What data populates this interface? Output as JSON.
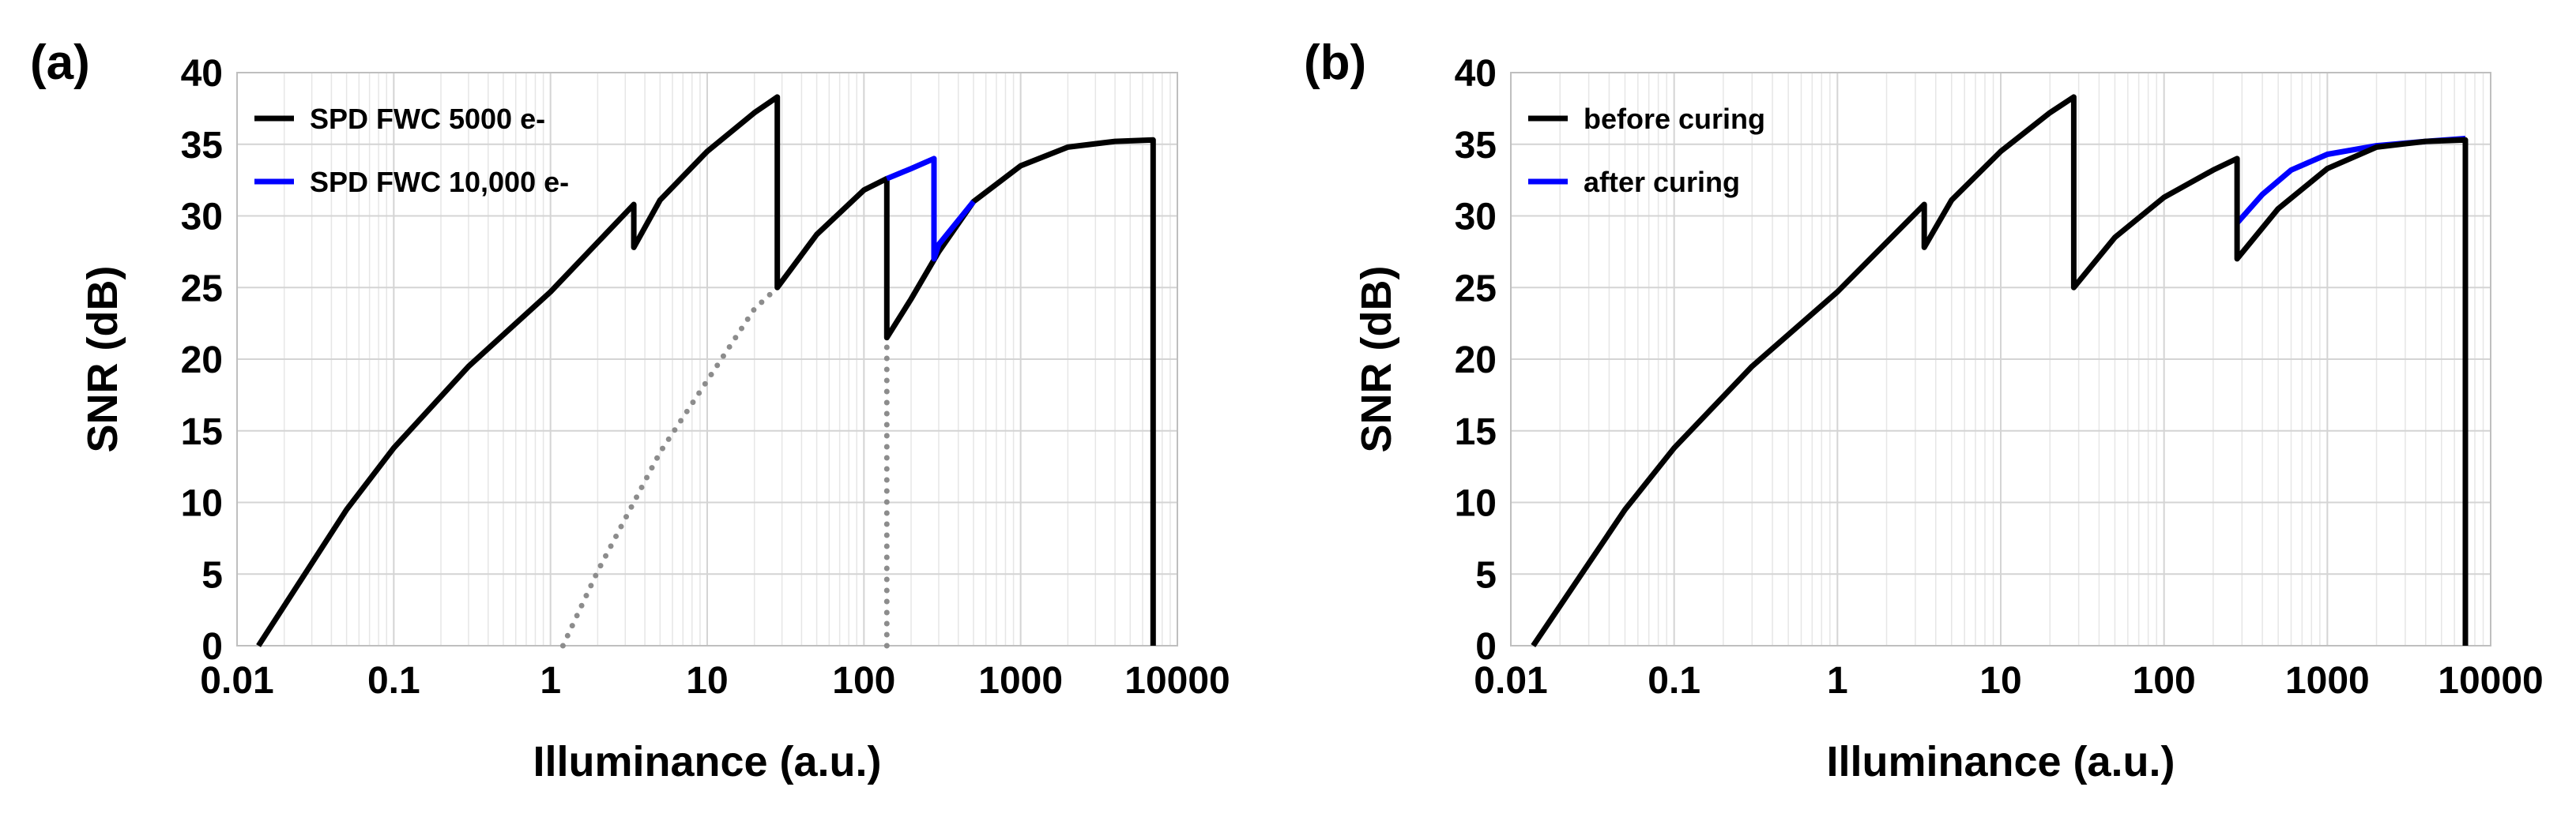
{
  "chart_data": [
    {
      "type": "line",
      "panel_label": "(a)",
      "xlabel": "Illuminance (a.u.)",
      "ylabel": "SNR (dB)",
      "xscale": "log",
      "xlim": [
        0.01,
        10000
      ],
      "ylim": [
        0,
        40
      ],
      "xticks": [
        "0.01",
        "0.1",
        "1",
        "10",
        "100",
        "1000",
        "10000"
      ],
      "yticks": [
        "0",
        "5",
        "10",
        "15",
        "20",
        "25",
        "30",
        "35",
        "40"
      ],
      "grid": true,
      "legend_position": "top-left",
      "series": [
        {
          "name": "SPD FWC 5000 e-",
          "color": "#000000",
          "style": "solid",
          "x": [
            0.0137,
            0.05,
            0.1,
            0.3,
            1,
            3.4,
            3.4,
            5,
            10,
            20,
            28,
            28,
            50,
            100,
            140,
            140,
            200,
            300,
            500,
            1000,
            2000,
            4000,
            7000,
            7000
          ],
          "y": [
            0,
            9.5,
            13.8,
            19.5,
            24.7,
            30.8,
            27.8,
            31.1,
            34.5,
            37.2,
            38.3,
            25.0,
            28.7,
            31.8,
            32.6,
            21.5,
            24.2,
            27.5,
            31.0,
            33.5,
            34.8,
            35.2,
            35.3,
            0
          ]
        },
        {
          "name": "SPD FWC 10,000 e-",
          "color": "#0000ff",
          "style": "solid",
          "x": [
            140,
            200,
            280,
            280,
            300,
            500
          ],
          "y": [
            32.6,
            33.3,
            34.0,
            27.0,
            28.0,
            31.0
          ]
        },
        {
          "name": "",
          "color": "#8c8c8c",
          "style": "dotted",
          "x": [
            1.2,
            2,
            5,
            10,
            20,
            28,
            50,
            100,
            140
          ],
          "y": [
            0,
            5.2,
            13.5,
            18.5,
            23.5,
            25.0,
            28.7,
            31.8,
            32.6
          ]
        },
        {
          "name": "",
          "color": "#8c8c8c",
          "style": "dotted",
          "x": [
            140,
            140
          ],
          "y": [
            0,
            21.5
          ]
        }
      ]
    },
    {
      "type": "line",
      "panel_label": "(b)",
      "xlabel": "Illuminance (a.u.)",
      "ylabel": "SNR (dB)",
      "xscale": "log",
      "xlim": [
        0.01,
        10000
      ],
      "ylim": [
        0,
        40
      ],
      "xticks": [
        "0.01",
        "0.1",
        "1",
        "10",
        "100",
        "1000",
        "10000"
      ],
      "yticks": [
        "0",
        "5",
        "10",
        "15",
        "20",
        "25",
        "30",
        "35",
        "40"
      ],
      "grid": true,
      "legend_position": "top-left",
      "series": [
        {
          "name": "after curing",
          "color": "#0000ff",
          "style": "solid",
          "x": [
            280,
            400,
            600,
            1000,
            2000,
            4000,
            7000
          ],
          "y": [
            29.5,
            31.5,
            33.2,
            34.3,
            34.9,
            35.2,
            35.4
          ]
        },
        {
          "name": "before curing",
          "color": "#000000",
          "style": "solid",
          "x": [
            0.0137,
            0.05,
            0.1,
            0.3,
            1,
            3.4,
            3.4,
            5,
            10,
            20,
            28,
            28,
            50,
            100,
            200,
            280,
            280,
            500,
            1000,
            2000,
            4000,
            7000,
            7000
          ],
          "y": [
            0,
            9.5,
            13.8,
            19.5,
            24.7,
            30.8,
            27.8,
            31.1,
            34.5,
            37.2,
            38.3,
            25.0,
            28.5,
            31.3,
            33.2,
            34.0,
            27.0,
            30.5,
            33.3,
            34.8,
            35.2,
            35.3,
            0
          ]
        }
      ]
    }
  ]
}
